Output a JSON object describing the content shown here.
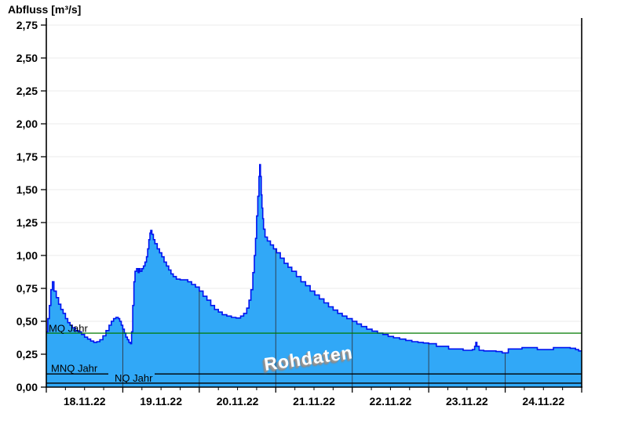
{
  "chart": {
    "title": "Abfluss [m³/s]",
    "watermark": "Rohdaten"
  },
  "chart_data": {
    "type": "area",
    "title": "Abfluss [m³/s]",
    "ylabel": "Abfluss [m³/s]",
    "xlabel": "",
    "ylim": [
      0,
      2.8
    ],
    "grid": "horizontal light-gray lines every 0.25; dark vertical day lines visible only inside filled area",
    "legend_position": "none",
    "y_tick_values": [
      0,
      0.25,
      0.5,
      0.75,
      1.0,
      1.25,
      1.5,
      1.75,
      2.0,
      2.25,
      2.5,
      2.75
    ],
    "y_tick_labels": [
      "0,00",
      "0,25",
      "0,50",
      "0,75",
      "1,00",
      "1,25",
      "1,50",
      "1,75",
      "2,00",
      "2,25",
      "2,50",
      "2,75"
    ],
    "x_days_total": 7,
    "x_tick_labels": [
      "18.11.22",
      "19.11.22",
      "20.11.22",
      "21.11.22",
      "22.11.22",
      "23.11.22",
      "24.11.22"
    ],
    "x_unit": "days since 18.11.22 00:00",
    "reference_lines": [
      {
        "label": "MQ Jahr",
        "value": 0.41,
        "color": "#007a00"
      },
      {
        "label": "MNQ Jahr",
        "value": 0.1,
        "color": "#000000"
      },
      {
        "label": "NQ Jahr",
        "value": 0.03,
        "color": "#000000"
      }
    ],
    "series": [
      {
        "name": "Abfluss Rohdaten",
        "fill_color": "#31a8f7",
        "line_color": "#0013f0",
        "interpolation": "step-after",
        "points": [
          [
            0.0,
            0.42
          ],
          [
            0.02,
            0.52
          ],
          [
            0.04,
            0.62
          ],
          [
            0.06,
            0.74
          ],
          [
            0.08,
            0.8
          ],
          [
            0.1,
            0.73
          ],
          [
            0.13,
            0.68
          ],
          [
            0.16,
            0.63
          ],
          [
            0.19,
            0.59
          ],
          [
            0.22,
            0.56
          ],
          [
            0.25,
            0.52
          ],
          [
            0.28,
            0.49
          ],
          [
            0.31,
            0.47
          ],
          [
            0.34,
            0.45
          ],
          [
            0.38,
            0.43
          ],
          [
            0.42,
            0.42
          ],
          [
            0.46,
            0.4
          ],
          [
            0.5,
            0.38
          ],
          [
            0.54,
            0.365
          ],
          [
            0.58,
            0.35
          ],
          [
            0.62,
            0.34
          ],
          [
            0.66,
            0.345
          ],
          [
            0.7,
            0.36
          ],
          [
            0.74,
            0.39
          ],
          [
            0.78,
            0.43
          ],
          [
            0.82,
            0.47
          ],
          [
            0.85,
            0.5
          ],
          [
            0.88,
            0.52
          ],
          [
            0.91,
            0.53
          ],
          [
            0.94,
            0.52
          ],
          [
            0.96,
            0.5
          ],
          [
            0.98,
            0.47
          ],
          [
            1.0,
            0.44
          ],
          [
            1.02,
            0.41
          ],
          [
            1.04,
            0.38
          ],
          [
            1.06,
            0.36
          ],
          [
            1.08,
            0.34
          ],
          [
            1.1,
            0.33
          ],
          [
            1.115,
            0.42
          ],
          [
            1.13,
            0.62
          ],
          [
            1.145,
            0.8
          ],
          [
            1.16,
            0.88
          ],
          [
            1.18,
            0.9
          ],
          [
            1.2,
            0.87
          ],
          [
            1.215,
            0.9
          ],
          [
            1.23,
            0.88
          ],
          [
            1.25,
            0.9
          ],
          [
            1.27,
            0.92
          ],
          [
            1.29,
            0.95
          ],
          [
            1.31,
            0.99
          ],
          [
            1.325,
            1.05
          ],
          [
            1.34,
            1.12
          ],
          [
            1.355,
            1.17
          ],
          [
            1.365,
            1.19
          ],
          [
            1.38,
            1.16
          ],
          [
            1.4,
            1.12
          ],
          [
            1.42,
            1.09
          ],
          [
            1.45,
            1.05
          ],
          [
            1.48,
            1.02
          ],
          [
            1.51,
            0.99
          ],
          [
            1.54,
            0.95
          ],
          [
            1.57,
            0.92
          ],
          [
            1.6,
            0.89
          ],
          [
            1.63,
            0.86
          ],
          [
            1.66,
            0.84
          ],
          [
            1.7,
            0.82
          ],
          [
            1.75,
            0.815
          ],
          [
            1.8,
            0.815
          ],
          [
            1.85,
            0.8
          ],
          [
            1.9,
            0.78
          ],
          [
            1.95,
            0.76
          ],
          [
            2.0,
            0.73
          ],
          [
            2.05,
            0.69
          ],
          [
            2.1,
            0.66
          ],
          [
            2.15,
            0.62
          ],
          [
            2.2,
            0.59
          ],
          [
            2.25,
            0.57
          ],
          [
            2.3,
            0.55
          ],
          [
            2.36,
            0.54
          ],
          [
            2.42,
            0.53
          ],
          [
            2.48,
            0.525
          ],
          [
            2.54,
            0.54
          ],
          [
            2.58,
            0.56
          ],
          [
            2.62,
            0.6
          ],
          [
            2.65,
            0.66
          ],
          [
            2.675,
            0.74
          ],
          [
            2.7,
            0.87
          ],
          [
            2.72,
            1.0
          ],
          [
            2.735,
            1.13
          ],
          [
            2.75,
            1.3
          ],
          [
            2.765,
            1.45
          ],
          [
            2.78,
            1.6
          ],
          [
            2.79,
            1.69
          ],
          [
            2.8,
            1.6
          ],
          [
            2.81,
            1.46
          ],
          [
            2.82,
            1.36
          ],
          [
            2.83,
            1.28
          ],
          [
            2.84,
            1.2
          ],
          [
            2.86,
            1.14
          ],
          [
            2.89,
            1.11
          ],
          [
            2.93,
            1.08
          ],
          [
            2.97,
            1.05
          ],
          [
            3.01,
            1.02
          ],
          [
            3.06,
            0.98
          ],
          [
            3.11,
            0.94
          ],
          [
            3.16,
            0.91
          ],
          [
            3.21,
            0.88
          ],
          [
            3.27,
            0.84
          ],
          [
            3.33,
            0.8
          ],
          [
            3.39,
            0.77
          ],
          [
            3.45,
            0.73
          ],
          [
            3.51,
            0.7
          ],
          [
            3.57,
            0.67
          ],
          [
            3.63,
            0.64
          ],
          [
            3.69,
            0.61
          ],
          [
            3.75,
            0.585
          ],
          [
            3.81,
            0.56
          ],
          [
            3.87,
            0.54
          ],
          [
            3.93,
            0.52
          ],
          [
            4.0,
            0.5
          ],
          [
            4.06,
            0.48
          ],
          [
            4.12,
            0.46
          ],
          [
            4.19,
            0.44
          ],
          [
            4.26,
            0.425
          ],
          [
            4.33,
            0.41
          ],
          [
            4.4,
            0.4
          ],
          [
            4.47,
            0.385
          ],
          [
            4.54,
            0.375
          ],
          [
            4.62,
            0.365
          ],
          [
            4.7,
            0.355
          ],
          [
            4.78,
            0.345
          ],
          [
            4.86,
            0.34
          ],
          [
            4.93,
            0.335
          ],
          [
            5.0,
            0.33
          ],
          [
            5.1,
            0.31
          ],
          [
            5.26,
            0.29
          ],
          [
            5.45,
            0.28
          ],
          [
            5.57,
            0.285
          ],
          [
            5.6,
            0.31
          ],
          [
            5.615,
            0.34
          ],
          [
            5.63,
            0.31
          ],
          [
            5.66,
            0.28
          ],
          [
            5.72,
            0.275
          ],
          [
            5.88,
            0.27
          ],
          [
            5.96,
            0.26
          ],
          [
            6.04,
            0.29
          ],
          [
            6.22,
            0.3
          ],
          [
            6.42,
            0.285
          ],
          [
            6.63,
            0.3
          ],
          [
            6.85,
            0.295
          ],
          [
            6.92,
            0.285
          ],
          [
            6.96,
            0.275
          ],
          [
            7.0,
            0.275
          ]
        ]
      }
    ]
  },
  "layout_hints": {
    "day_gridline_color": "#2f4255",
    "h_gridline_color": "#ebebeb",
    "axis_color": "#000000"
  }
}
